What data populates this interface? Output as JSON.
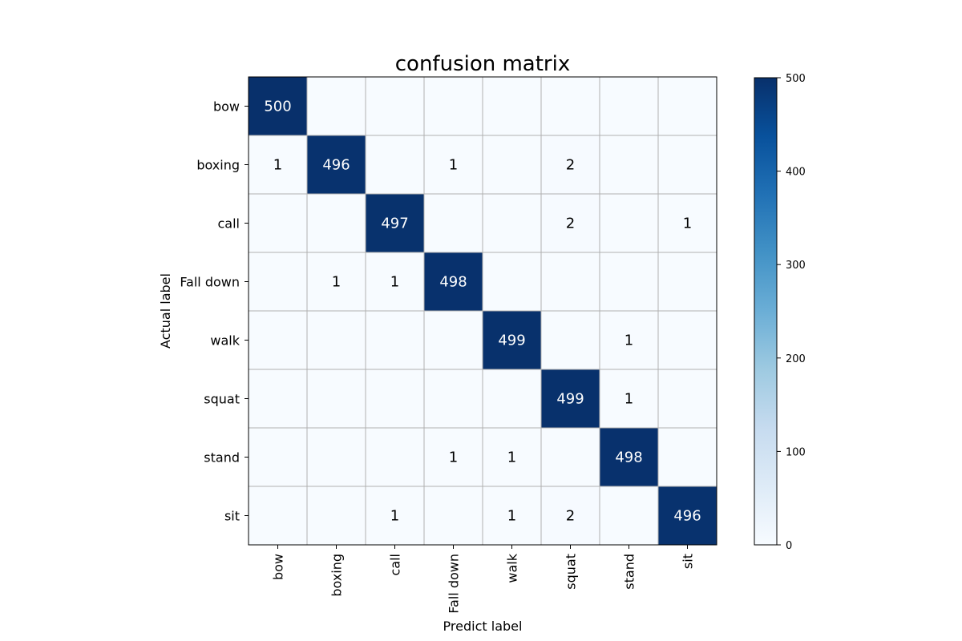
{
  "chart_data": {
    "type": "heatmap",
    "title": "confusion matrix",
    "xlabel": "Predict label",
    "ylabel": "Actual label",
    "x_categories": [
      "bow",
      "boxing",
      "call",
      "Fall down",
      "walk",
      "squat",
      "stand",
      "sit"
    ],
    "y_categories": [
      "bow",
      "boxing",
      "call",
      "Fall down",
      "walk",
      "squat",
      "stand",
      "sit"
    ],
    "values": [
      [
        500,
        0,
        0,
        0,
        0,
        0,
        0,
        0
      ],
      [
        1,
        496,
        0,
        1,
        0,
        2,
        0,
        0
      ],
      [
        0,
        0,
        497,
        0,
        0,
        2,
        0,
        1
      ],
      [
        0,
        1,
        1,
        498,
        0,
        0,
        0,
        0
      ],
      [
        0,
        0,
        0,
        0,
        499,
        0,
        1,
        0
      ],
      [
        0,
        0,
        0,
        0,
        0,
        499,
        1,
        0
      ],
      [
        0,
        0,
        0,
        1,
        1,
        0,
        498,
        0
      ],
      [
        0,
        0,
        1,
        0,
        1,
        2,
        0,
        496
      ]
    ],
    "show_zero_values": false,
    "colormap": "Blues",
    "color_low": "#f7fbff",
    "color_high": "#08306b",
    "value_range": [
      0,
      500
    ],
    "grid": true,
    "grid_color": "#b0b0b0",
    "colorbar": {
      "position": "right",
      "ticks": [
        0,
        100,
        200,
        300,
        400,
        500
      ]
    }
  }
}
